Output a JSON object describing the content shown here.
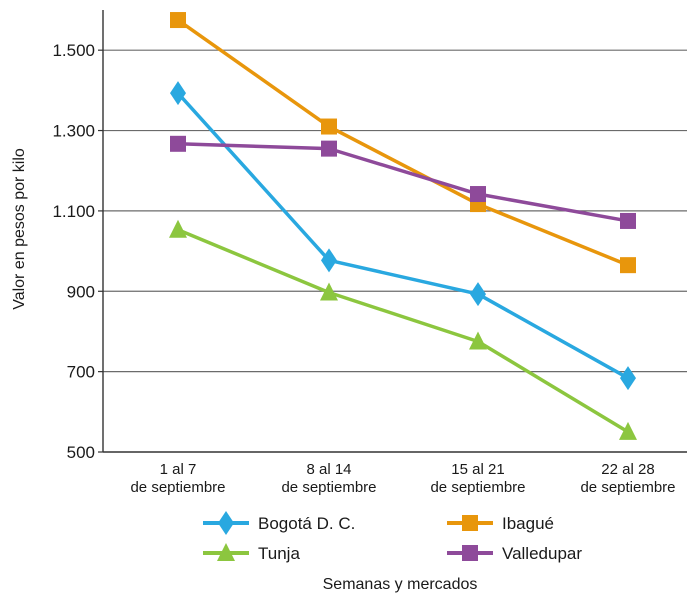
{
  "chart_data": {
    "type": "line",
    "title": "",
    "xlabel": "Semanas y mercados",
    "ylabel": "Valor en pesos por kilo",
    "ylim": [
      500,
      1600
    ],
    "yticks": [
      {
        "value": 500,
        "label": "500"
      },
      {
        "value": 700,
        "label": "700"
      },
      {
        "value": 900,
        "label": "900"
      },
      {
        "value": 1100,
        "label": "1.100"
      },
      {
        "value": 1300,
        "label": "1.300"
      },
      {
        "value": 1500,
        "label": "1.500"
      }
    ],
    "grid": true,
    "legend_position": "bottom",
    "categories": [
      [
        "1 al 7",
        "de septiembre"
      ],
      [
        "8 al 14",
        "de septiembre"
      ],
      [
        "15 al 21",
        "de septiembre"
      ],
      [
        "22 al 28",
        "de septiembre"
      ]
    ],
    "series": [
      {
        "name": "Bogotá D. C.",
        "marker": "diamond",
        "color": "#29a8e0",
        "values": [
          1393,
          977,
          893,
          684
        ]
      },
      {
        "name": "Ibagué",
        "marker": "square",
        "color": "#e8960c",
        "values": [
          1575,
          1310,
          1117,
          965
        ]
      },
      {
        "name": "Tunja",
        "marker": "triangle",
        "color": "#8cc63f",
        "values": [
          1053,
          897,
          775,
          550
        ]
      },
      {
        "name": "Valledupar",
        "marker": "square",
        "color": "#8e4a9a",
        "values": [
          1267,
          1255,
          1142,
          1075
        ]
      }
    ]
  }
}
